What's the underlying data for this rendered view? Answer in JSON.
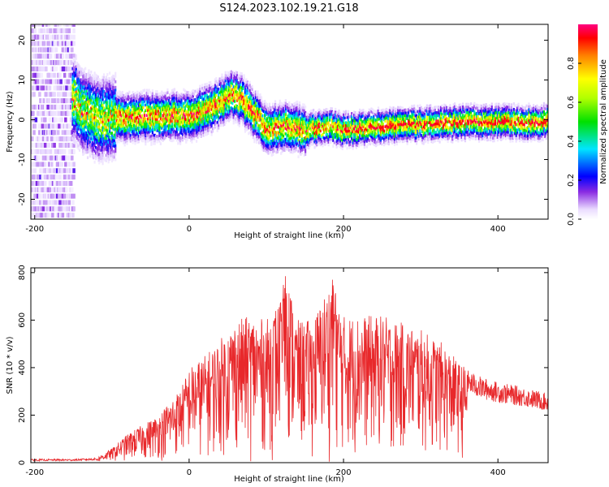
{
  "title": "S124.2023.102.19.21.G18",
  "chart_data": [
    {
      "type": "heatmap",
      "xlabel": "Height of straight line (km)",
      "ylabel": "Frequency (Hz)",
      "xlim": [
        -205,
        465
      ],
      "ylim": [
        -25,
        24
      ],
      "x_ticks": [
        -200,
        0,
        200,
        400
      ],
      "y_ticks": [
        -20,
        -10,
        0,
        10,
        20
      ],
      "grid": false,
      "colorbar": {
        "label": "Normalized spectral amplitude",
        "range": [
          0,
          1
        ],
        "ticks": [
          0,
          0.2,
          0.4,
          0.6,
          0.8
        ],
        "colormap": "white-purple-blue-cyan-green-yellow-orange-red-magenta"
      },
      "ridge": {
        "x": [
          -150,
          -140,
          -120,
          -100,
          -80,
          -40,
          0,
          20,
          40,
          55,
          65,
          80,
          100,
          120,
          150,
          180,
          200,
          250,
          300,
          350,
          400,
          465
        ],
        "y": [
          5,
          2,
          0,
          0,
          0.3,
          0.5,
          0.5,
          2,
          4,
          6,
          5,
          2,
          -3,
          -2,
          -3,
          -2,
          -3,
          -2,
          -1.5,
          -1,
          -1,
          -1
        ]
      }
    },
    {
      "type": "line",
      "xlabel": "Height of straight line (km)",
      "ylabel": "SNR (10 * v/v)",
      "xlim": [
        -205,
        465
      ],
      "ylim": [
        0,
        820
      ],
      "x_ticks": [
        -200,
        0,
        200,
        400
      ],
      "y_ticks": [
        0,
        200,
        400,
        600,
        800
      ],
      "grid": false,
      "series_color": "#e8282b",
      "envelope": {
        "x": [
          -205,
          -150,
          -120,
          -100,
          -80,
          -40,
          -10,
          0,
          20,
          40,
          50,
          60,
          80,
          100,
          120,
          125,
          140,
          160,
          185,
          200,
          250,
          300,
          330,
          350,
          380,
          400,
          430,
          465
        ],
        "y": [
          15,
          15,
          20,
          60,
          120,
          200,
          320,
          400,
          450,
          520,
          560,
          600,
          620,
          600,
          700,
          820,
          600,
          600,
          780,
          620,
          620,
          560,
          500,
          420,
          370,
          350,
          330,
          300
        ]
      }
    }
  ]
}
